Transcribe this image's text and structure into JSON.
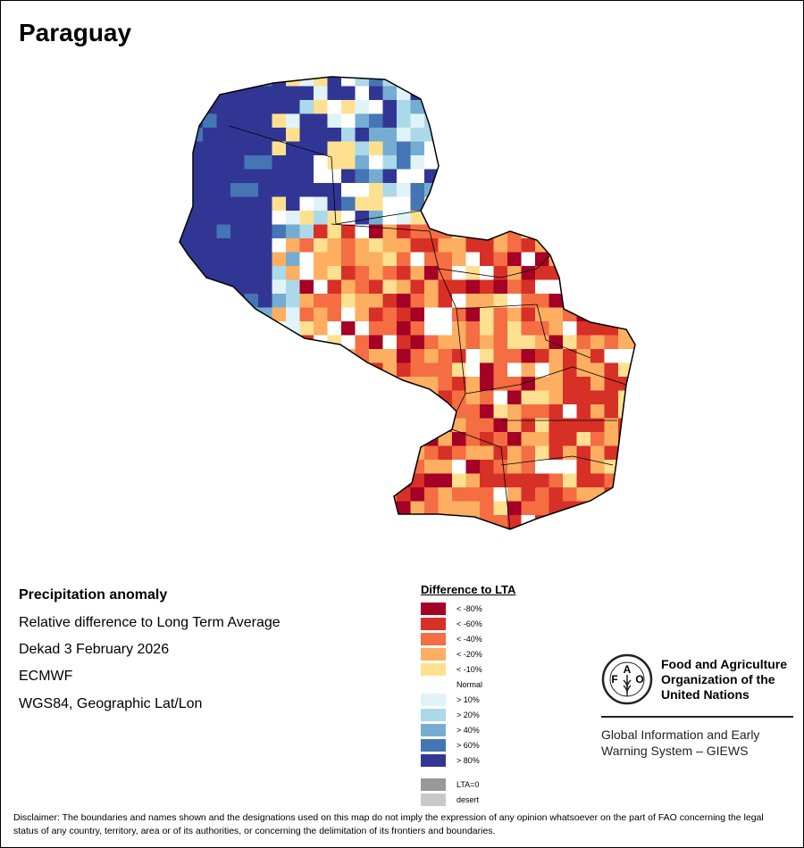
{
  "title": "Paraguay",
  "info": [
    "Precipitation anomaly",
    "Relative difference to Long Term Average",
    "Dekad 3 February 2026",
    "ECMWF",
    "WGS84, Geographic Lat/Lon"
  ],
  "legend": {
    "title": "Difference to LTA",
    "items": [
      {
        "label": "< -80%",
        "color": "#a50026"
      },
      {
        "label": "< -60%",
        "color": "#d73027"
      },
      {
        "label": "< -40%",
        "color": "#f46d43"
      },
      {
        "label": "< -20%",
        "color": "#fdae61"
      },
      {
        "label": "< -10%",
        "color": "#fee090"
      },
      {
        "label": "Normal",
        "color": "#ffffff"
      },
      {
        "label": "> 10%",
        "color": "#e0f3f8"
      },
      {
        "label": "> 20%",
        "color": "#abd9e9"
      },
      {
        "label": "> 40%",
        "color": "#74add1"
      },
      {
        "label": "> 60%",
        "color": "#4575b4"
      },
      {
        "label": "> 80%",
        "color": "#313695"
      }
    ],
    "extra": [
      {
        "label": "LTA=0",
        "color": "#999999"
      },
      {
        "label": "desert",
        "color": "#c8c8c8"
      }
    ]
  },
  "fao": {
    "lines": [
      "Food and Agriculture",
      "Organization of the",
      "United Nations"
    ],
    "giews": [
      "Global Information and Early",
      "Warning System – GIEWS"
    ],
    "logo_text": "FAO FIAT PANIS"
  },
  "disclaimer": "Disclaimer: The boundaries and names shown and the designations used on this map do not imply the expression of any opinion whatsoever on the part of FAO concerning the legal status of any country, territory, area or of its authorities, or concerning the delimitation of its frontiers and boundaries."
}
